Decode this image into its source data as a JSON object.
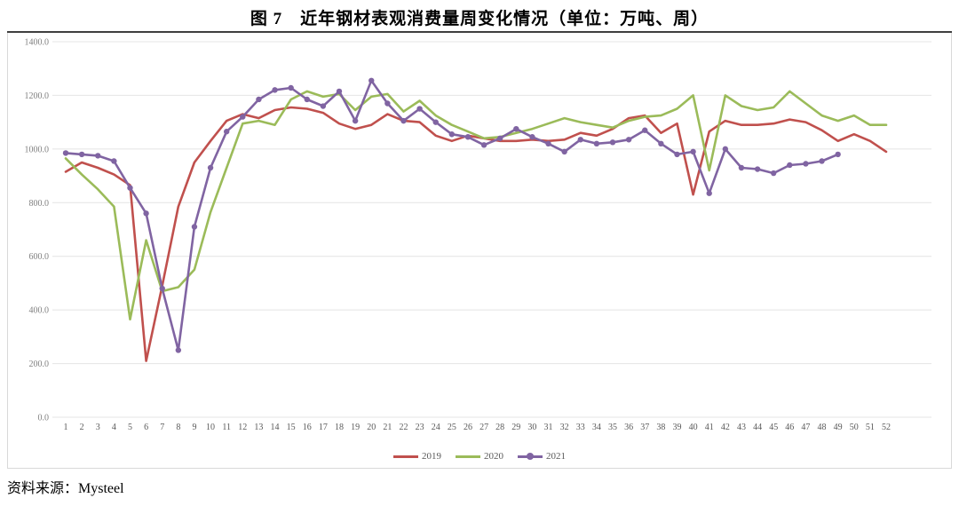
{
  "title": "图 7　近年钢材表观消费量周变化情况（单位：万吨、周）",
  "source_note": "资料来源：Mysteel",
  "chart_data": {
    "type": "line",
    "title": "图 7　近年钢材表观消费量周变化情况（单位：万吨、周）",
    "xlabel": "周",
    "ylabel": "万吨",
    "grid": "horizontal",
    "legend_position": "bottom",
    "y_axis": {
      "min": 0,
      "max": 1400,
      "tick_step": 200,
      "tick_labels": [
        "0.0",
        "200.0",
        "400.0",
        "600.0",
        "800.0",
        "1000.0",
        "1200.0",
        "1400.0"
      ]
    },
    "categories": [
      "1",
      "2",
      "3",
      "4",
      "5",
      "6",
      "7",
      "8",
      "9",
      "10",
      "11",
      "12",
      "13",
      "14",
      "15",
      "16",
      "17",
      "18",
      "19",
      "20",
      "21",
      "22",
      "23",
      "24",
      "25",
      "26",
      "27",
      "28",
      "29",
      "30",
      "31",
      "32",
      "33",
      "34",
      "35",
      "36",
      "37",
      "38",
      "39",
      "40",
      "41",
      "42",
      "43",
      "44",
      "45",
      "46",
      "47",
      "48",
      "49",
      "50",
      "51",
      "52"
    ],
    "series": [
      {
        "name": "2019",
        "color": "#C0504D",
        "marker": "none",
        "values": [
          915,
          950,
          930,
          905,
          865,
          210,
          490,
          785,
          950,
          1030,
          1105,
          1130,
          1115,
          1145,
          1155,
          1150,
          1135,
          1095,
          1075,
          1090,
          1130,
          1105,
          1100,
          1050,
          1030,
          1050,
          1040,
          1030,
          1030,
          1035,
          1030,
          1035,
          1060,
          1050,
          1075,
          1115,
          1125,
          1060,
          1095,
          830,
          1065,
          1105,
          1090,
          1090,
          1095,
          1110,
          1100,
          1070,
          1030,
          1055,
          1030,
          990
        ]
      },
      {
        "name": "2020",
        "color": "#9BBB59",
        "marker": "none",
        "values": [
          965,
          905,
          850,
          785,
          365,
          660,
          470,
          485,
          550,
          765,
          930,
          1095,
          1105,
          1090,
          1185,
          1215,
          1195,
          1205,
          1145,
          1195,
          1205,
          1140,
          1180,
          1125,
          1090,
          1065,
          1040,
          1045,
          1060,
          1075,
          1095,
          1115,
          1100,
          1090,
          1080,
          1105,
          1120,
          1125,
          1150,
          1200,
          920,
          1200,
          1160,
          1145,
          1155,
          1215,
          1170,
          1125,
          1105,
          1125,
          1090,
          1090
        ]
      },
      {
        "name": "2021",
        "color": "#8064A2",
        "marker": "circle",
        "values": [
          985,
          980,
          975,
          955,
          855,
          760,
          480,
          250,
          710,
          930,
          1065,
          1120,
          1185,
          1220,
          1228,
          1185,
          1160,
          1215,
          1105,
          1255,
          1170,
          1105,
          1150,
          1100,
          1055,
          1045,
          1015,
          1040,
          1075,
          1045,
          1020,
          990,
          1035,
          1020,
          1025,
          1035,
          1070,
          1020,
          980,
          990,
          835,
          1000,
          930,
          925,
          910,
          940,
          945,
          955,
          980
        ]
      }
    ]
  }
}
